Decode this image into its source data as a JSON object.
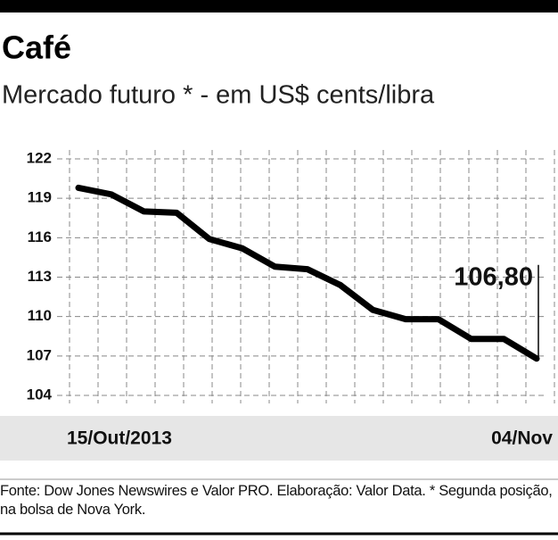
{
  "chart_data": {
    "type": "line",
    "title": "Café",
    "subtitle": "Mercado futuro * - em US$ cents/libra",
    "categories": [
      "15/Out/2013",
      null,
      null,
      null,
      null,
      null,
      null,
      null,
      null,
      null,
      null,
      null,
      null,
      null,
      "04/Nov"
    ],
    "series": [
      {
        "name": null,
        "color": "#000000",
        "values": [
          119.8,
          119.3,
          118.0,
          117.9,
          115.9,
          115.2,
          113.8,
          113.6,
          112.4,
          110.5,
          109.8,
          109.8,
          108.3,
          108.3,
          106.8
        ],
        "value_labels": [
          null,
          null,
          null,
          null,
          null,
          null,
          null,
          null,
          null,
          null,
          null,
          null,
          null,
          null,
          "106,80"
        ]
      }
    ],
    "ylim": [
      104,
      122
    ],
    "yticks": [
      104,
      107,
      110,
      113,
      116,
      119,
      122
    ],
    "grid": true,
    "source": "Fonte: Dow Jones Newswires e Valor PRO. Elaboração: Valor Data. * Segunda posição, na bolsa de Nova York."
  }
}
